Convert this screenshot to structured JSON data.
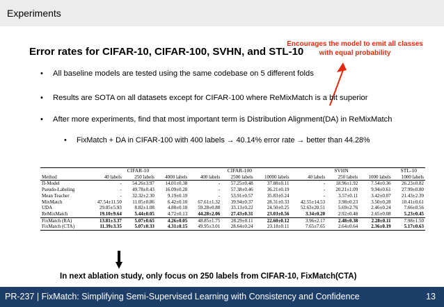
{
  "header": {
    "section": "Experiments"
  },
  "slide": {
    "title": "Error rates for CIFAR-10, CIFAR-100, SVHN, and STL-10",
    "note": "Encourages the model to emit all classes with equal probability",
    "bullets": [
      "All baseline models are tested using the same codebase on 5 different folds",
      "Results are SOTA on all datasets except for CIFAR-100 where ReMixMatch is a bit superior",
      "After more experiments, find that most important term is Distribution Alignment(DA) in ReMixMatch"
    ],
    "sub_bullet": "FixMatch + DA in CIFAR-100 with 400 labels → 40.14% error rate → better than 44.28%",
    "ablation": "In next ablation study, only focus on 250 labels from CIFAR-10, FixMatch(CTA)"
  },
  "table": {
    "groups": [
      "CIFAR-10",
      "CIFAR-100",
      "SVHN",
      "STL-10"
    ],
    "columns": [
      "Method",
      "40 labels",
      "250 labels",
      "4000 labels",
      "400 labels",
      "2500 labels",
      "10000 labels",
      "40 labels",
      "250 labels",
      "1000 labels",
      "1000 labels"
    ],
    "rows": [
      [
        "Π-Model",
        "-",
        "54.26±3.97",
        "14.01±0.38",
        "-",
        "57.25±0.48",
        "37.88±0.11",
        "-",
        "18.96±1.92",
        "7.54±0.36",
        "26.23±0.82"
      ],
      [
        "Pseudo-Labeling",
        "-",
        "49.78±0.43",
        "16.09±0.28",
        "-",
        "57.38±0.46",
        "36.21±0.19",
        "-",
        "20.21±1.09",
        "9.94±0.61",
        "27.99±0.80"
      ],
      [
        "Mean Teacher",
        "-",
        "32.32±2.30",
        "9.19±0.19",
        "-",
        "53.91±0.57",
        "35.83±0.24",
        "-",
        "3.57±0.11",
        "3.42±0.07",
        "21.43±2.39"
      ],
      [
        "MixMatch",
        "47.54±11.50",
        "11.05±0.86",
        "6.42±0.10",
        "67.61±1.32",
        "39.94±0.37",
        "28.31±0.33",
        "42.55±14.53",
        "3.98±0.23",
        "3.50±0.28",
        "10.41±0.61"
      ],
      [
        "UDA",
        "29.05±5.93",
        "8.82±1.08",
        "4.88±0.18",
        "59.28±0.88",
        "33.13±0.22",
        "24.50±0.25",
        "52.63±20.51",
        "5.69±2.76",
        "2.46±0.24",
        "7.66±0.56"
      ],
      [
        "ReMixMatch",
        "19.10±9.64",
        "5.44±0.05",
        "4.72±0.13",
        "44.28±2.06",
        "27.43±0.31",
        "23.03±0.56",
        "3.34±0.20",
        "2.92±0.48",
        "2.65±0.08",
        "5.23±0.45"
      ],
      [
        "FixMatch (RA)",
        "13.81±3.37",
        "5.07±0.65",
        "4.26±0.05",
        "48.85±1.75",
        "28.29±0.11",
        "22.60±0.12",
        "3.96±2.17",
        "2.48±0.38",
        "2.28±0.11",
        "7.98±1.50"
      ],
      [
        "FixMatch (CTA)",
        "11.39±3.35",
        "5.07±0.33",
        "4.31±0.15",
        "49.95±3.01",
        "28.64±0.24",
        "23.18±0.11",
        "7.65±7.65",
        "2.64±0.64",
        "2.36±0.19",
        "5.17±0.63"
      ]
    ]
  },
  "footer": {
    "text": "PR-237 | FixMatch: Simplifying Semi-Supervised Learning with Consistency and Confidence",
    "page": "13"
  }
}
